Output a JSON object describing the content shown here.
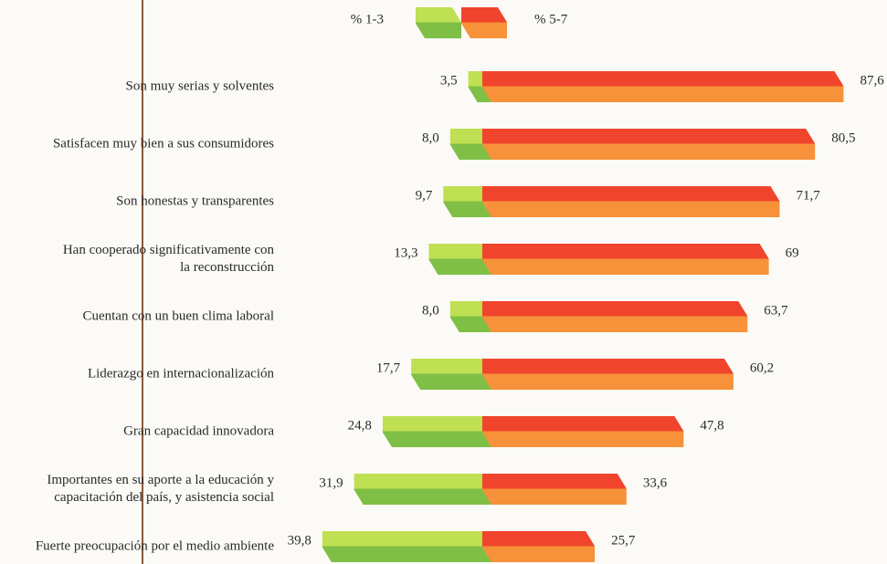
{
  "chart_data": {
    "type": "diverging-bar",
    "categories": [
      [
        "Son muy serias y solventes"
      ],
      [
        "Satisfacen muy bien a sus consumidores"
      ],
      [
        "Son honestas y transparentes"
      ],
      [
        "Han cooperado significativamente con",
        "la reconstrucción"
      ],
      [
        "Cuentan con un buen clima laboral"
      ],
      [
        "Liderazgo en internacionalización"
      ],
      [
        "Gran capacidad innovadora"
      ],
      [
        "Importantes en su aporte a la educación y",
        "capacitación del país, y asistencia social"
      ],
      [
        "Fuerte preocupación por el medio ambiente"
      ]
    ],
    "series": [
      {
        "name": "% 1-3",
        "color": "#8cc63f",
        "direction": "left",
        "values": [
          3.5,
          8.0,
          9.7,
          13.3,
          8.0,
          17.7,
          24.8,
          31.9,
          39.8
        ],
        "value_labels": [
          "3,5",
          "8,0",
          "9,7",
          "13,3",
          "8,0",
          "17,7",
          "24,8",
          "31,9",
          "39,8"
        ]
      },
      {
        "name": "% 5-7",
        "color": "#f26b2e",
        "direction": "right",
        "values": [
          87.6,
          80.5,
          71.7,
          69,
          63.7,
          60.2,
          47.8,
          33.6,
          25.7
        ],
        "value_labels": [
          "87,6",
          "80,5",
          "71,7",
          "69",
          "63,7",
          "60,2",
          "47,8",
          "33,6",
          "25,7"
        ]
      }
    ]
  }
}
